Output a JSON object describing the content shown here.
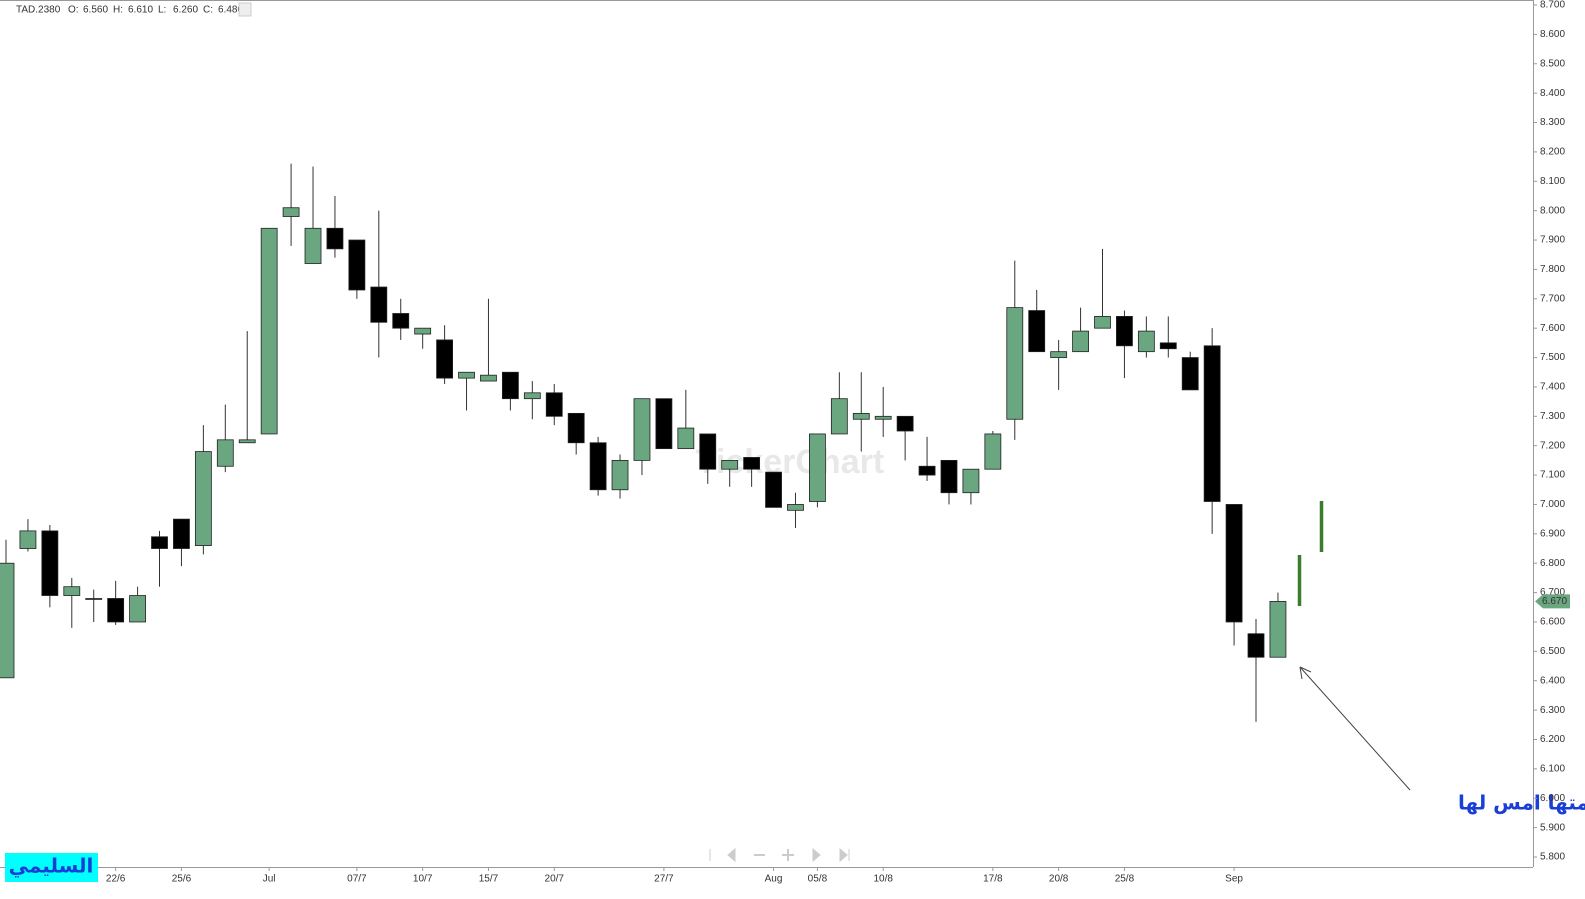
{
  "chart_data": {
    "type": "candlestick",
    "symbol": "TAD.2380",
    "ohlc_header": [
      {
        "label": "O:",
        "value": "6.560"
      },
      {
        "label": "H:",
        "value": "6.610"
      },
      {
        "label": "L:",
        "value": "6.260"
      },
      {
        "label": "C:",
        "value": "6.480"
      }
    ],
    "watermark": "TickerChart",
    "annotation": "هذه اول شمعه خضراء ابتلعت الشمعه التي رسمتها امس لها",
    "badge": "السليمي",
    "last_price": {
      "value": 6.67,
      "label": "6.670"
    },
    "up_color": "#6aa67f",
    "down_color": "#000000",
    "categories": [
      null,
      null,
      null,
      null,
      null,
      "22/6",
      null,
      null,
      "25/6",
      null,
      null,
      null,
      "Jul",
      null,
      null,
      null,
      "07/7",
      null,
      null,
      "10/7",
      null,
      null,
      "15/7",
      null,
      null,
      "20/7",
      null,
      null,
      null,
      null,
      "27/7",
      null,
      null,
      null,
      null,
      "Aug",
      null,
      "05/8",
      null,
      null,
      "10/8",
      null,
      null,
      null,
      null,
      "17/8",
      null,
      null,
      "20/8",
      null,
      null,
      "25/8",
      null,
      null,
      null,
      null,
      "Sep",
      null,
      null
    ],
    "open": [
      6.41,
      6.85,
      6.91,
      6.69,
      6.68,
      6.68,
      6.6,
      6.89,
      6.95,
      6.86,
      7.13,
      7.21,
      7.24,
      7.98,
      7.82,
      7.94,
      7.9,
      7.74,
      7.65,
      7.58,
      7.56,
      7.43,
      7.42,
      7.45,
      7.36,
      7.38,
      7.31,
      7.21,
      7.05,
      7.15,
      7.36,
      7.19,
      7.24,
      7.12,
      7.16,
      7.11,
      6.98,
      7.01,
      7.24,
      7.29,
      7.29,
      7.3,
      7.13,
      7.15,
      7.04,
      7.12,
      7.29,
      7.66,
      7.5,
      7.52,
      7.6,
      7.64,
      7.52,
      7.55,
      7.5,
      7.54,
      7.0,
      6.56,
      6.48
    ],
    "high": [
      6.88,
      6.95,
      6.93,
      6.75,
      6.71,
      6.74,
      6.72,
      6.91,
      6.95,
      7.27,
      7.34,
      7.59,
      7.94,
      8.16,
      8.15,
      8.05,
      7.9,
      8.0,
      7.7,
      7.6,
      7.61,
      7.45,
      7.7,
      7.45,
      7.42,
      7.41,
      7.31,
      7.23,
      7.17,
      7.36,
      7.36,
      7.39,
      7.24,
      7.15,
      7.16,
      7.11,
      7.04,
      7.24,
      7.45,
      7.45,
      7.4,
      7.3,
      7.23,
      7.15,
      7.12,
      7.25,
      7.83,
      7.73,
      7.56,
      7.67,
      7.87,
      7.66,
      7.64,
      7.64,
      7.52,
      7.6,
      7.0,
      6.61,
      6.7
    ],
    "low": [
      6.41,
      6.84,
      6.65,
      6.58,
      6.6,
      6.59,
      6.6,
      6.72,
      6.79,
      6.83,
      7.11,
      7.21,
      7.24,
      7.88,
      7.82,
      7.84,
      7.7,
      7.5,
      7.56,
      7.53,
      7.41,
      7.32,
      7.42,
      7.32,
      7.29,
      7.27,
      7.17,
      7.03,
      7.02,
      7.1,
      7.19,
      7.19,
      7.07,
      7.06,
      7.06,
      6.99,
      6.92,
      6.99,
      7.24,
      7.18,
      7.23,
      7.15,
      7.08,
      7.0,
      7.0,
      7.12,
      7.22,
      7.52,
      7.39,
      7.52,
      7.6,
      7.43,
      7.5,
      7.5,
      7.39,
      6.9,
      6.52,
      6.26,
      6.48
    ],
    "close": [
      6.8,
      6.91,
      6.69,
      6.72,
      6.68,
      6.6,
      6.69,
      6.85,
      6.85,
      7.18,
      7.22,
      7.22,
      7.94,
      8.01,
      7.94,
      7.87,
      7.73,
      7.62,
      7.6,
      7.6,
      7.43,
      7.45,
      7.44,
      7.36,
      7.38,
      7.3,
      7.21,
      7.05,
      7.15,
      7.36,
      7.19,
      7.26,
      7.12,
      7.15,
      7.12,
      6.99,
      7.0,
      7.24,
      7.36,
      7.31,
      7.3,
      7.25,
      7.1,
      7.04,
      7.12,
      7.24,
      7.67,
      7.52,
      7.52,
      7.59,
      7.64,
      7.54,
      7.59,
      7.53,
      7.39,
      7.01,
      6.6,
      6.48,
      6.67
    ],
    "ylim": [
      5.766,
      8.717
    ],
    "yticks": [
      {
        "value": 5.8,
        "label": "5.800"
      },
      {
        "value": 5.9,
        "label": "5.900"
      },
      {
        "value": 6.0,
        "label": "6.000"
      },
      {
        "value": 6.1,
        "label": "6.100"
      },
      {
        "value": 6.2,
        "label": "6.200"
      },
      {
        "value": 6.3,
        "label": "6.300"
      },
      {
        "value": 6.4,
        "label": "6.400"
      },
      {
        "value": 6.5,
        "label": "6.500"
      },
      {
        "value": 6.6,
        "label": "6.600"
      },
      {
        "value": 6.7,
        "label": "6.700"
      },
      {
        "value": 6.8,
        "label": "6.800"
      },
      {
        "value": 6.9,
        "label": "6.900"
      },
      {
        "value": 7.0,
        "label": "7.000"
      },
      {
        "value": 7.1,
        "label": "7.100"
      },
      {
        "value": 7.2,
        "label": "7.200"
      },
      {
        "value": 7.3,
        "label": "7.300"
      },
      {
        "value": 7.4,
        "label": "7.400"
      },
      {
        "value": 7.5,
        "label": "7.500"
      },
      {
        "value": 7.6,
        "label": "7.600"
      },
      {
        "value": 7.7,
        "label": "7.700"
      },
      {
        "value": 7.8,
        "label": "7.800"
      },
      {
        "value": 7.9,
        "label": "7.900"
      },
      {
        "value": 8.0,
        "label": "8.000"
      },
      {
        "value": 8.1,
        "label": "8.100"
      },
      {
        "value": 8.2,
        "label": "8.200"
      },
      {
        "value": 8.3,
        "label": "8.300"
      },
      {
        "value": 8.4,
        "label": "8.400"
      },
      {
        "value": 8.5,
        "label": "8.500"
      },
      {
        "value": 8.6,
        "label": "8.600"
      },
      {
        "value": 8.7,
        "label": "8.700"
      }
    ]
  }
}
